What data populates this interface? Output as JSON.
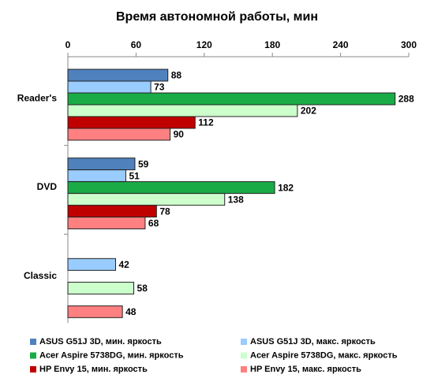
{
  "chart_data": {
    "type": "bar",
    "orientation": "horizontal",
    "title": "Время автономной работы, мин",
    "categories": [
      "Reader's",
      "DVD",
      "Classic"
    ],
    "series": [
      {
        "name": "ASUS G51J 3D, мин. яркость",
        "color": "#4f81bd",
        "values": [
          88,
          59,
          null
        ]
      },
      {
        "name": "ASUS G51J 3D, макс. яркость",
        "color": "#99ccff",
        "values": [
          73,
          51,
          42
        ]
      },
      {
        "name": "Acer Aspire 5738DG, мин. яркость",
        "color": "#1aab47",
        "values": [
          288,
          182,
          null
        ]
      },
      {
        "name": "Acer Aspire 5738DG, макс. яркость",
        "color": "#ccffcc",
        "values": [
          202,
          138,
          58
        ]
      },
      {
        "name": "HP Envy 15, мин. яркость",
        "color": "#c00000",
        "values": [
          112,
          78,
          null
        ]
      },
      {
        "name": "HP Envy 15, макс. яркость",
        "color": "#ff8080",
        "values": [
          90,
          68,
          48
        ]
      }
    ],
    "xlim": [
      0,
      300
    ],
    "xticks": [
      0,
      60,
      120,
      180,
      240,
      300
    ]
  }
}
